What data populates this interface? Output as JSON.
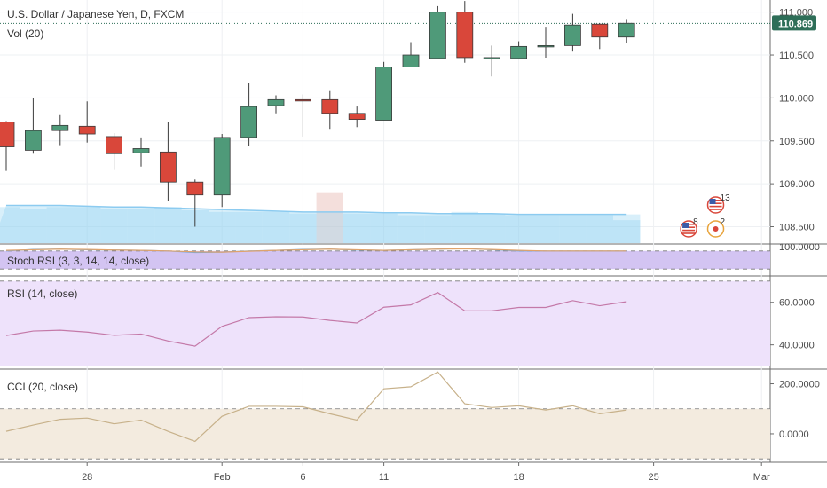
{
  "header": {
    "symbol_title": "U.S. Dollar / Japanese Yen, D, FXCM",
    "volume_label": "Vol (20)"
  },
  "indicators": {
    "stoch_rsi": "Stoch RSI (3, 3, 14, 14, close)",
    "rsi": "RSI (14, close)",
    "cci": "CCI (20, close)"
  },
  "last_price": "110.869",
  "colors": {
    "bull": "#4f9a79",
    "bear": "#d9473a",
    "volume": "#8fd0f2",
    "last_price_line": "#2e6e58",
    "stoch_band": "#d3c4f2",
    "rsi_band": "#eee2fb",
    "cci_band": "#f3ebdf"
  },
  "x_axis_labels": [
    {
      "label": "28",
      "index": 3
    },
    {
      "label": "Feb",
      "index": 8
    },
    {
      "label": "6",
      "index": 11
    },
    {
      "label": "11",
      "index": 14
    },
    {
      "label": "18",
      "index": 19
    },
    {
      "label": "25",
      "index": 24
    },
    {
      "label": "Mar",
      "index": 28
    }
  ],
  "event_markers": [
    {
      "count": "8",
      "index": 25.3
    },
    {
      "count": "13",
      "index": 26.3
    },
    {
      "count": "2",
      "index": 26.3
    }
  ],
  "chart_data": [
    {
      "type": "candlestick",
      "title": "U.S. Dollar / Japanese Yen, D, FXCM",
      "ylim": [
        108.35,
        111.1
      ],
      "yticks": [
        "108.500",
        "109.000",
        "109.500",
        "110.000",
        "110.500",
        "111.000"
      ],
      "last_price": 110.869,
      "candles": [
        {
          "o": 109.72,
          "h": 109.73,
          "l": 109.15,
          "c": 109.43
        },
        {
          "o": 109.39,
          "h": 110.0,
          "l": 109.35,
          "c": 109.62
        },
        {
          "o": 109.62,
          "h": 109.8,
          "l": 109.45,
          "c": 109.68
        },
        {
          "o": 109.67,
          "h": 109.96,
          "l": 109.48,
          "c": 109.58
        },
        {
          "o": 109.55,
          "h": 109.59,
          "l": 109.16,
          "c": 109.35
        },
        {
          "o": 109.36,
          "h": 109.54,
          "l": 109.2,
          "c": 109.41
        },
        {
          "o": 109.37,
          "h": 109.72,
          "l": 108.8,
          "c": 109.02
        },
        {
          "o": 109.02,
          "h": 109.05,
          "l": 108.5,
          "c": 108.87
        },
        {
          "o": 108.87,
          "h": 109.58,
          "l": 108.73,
          "c": 109.54
        },
        {
          "o": 109.54,
          "h": 110.17,
          "l": 109.44,
          "c": 109.9
        },
        {
          "o": 109.91,
          "h": 110.03,
          "l": 109.82,
          "c": 109.98
        },
        {
          "o": 109.98,
          "h": 110.04,
          "l": 109.55,
          "c": 109.97
        },
        {
          "o": 109.98,
          "h": 110.09,
          "l": 109.64,
          "c": 109.82
        },
        {
          "o": 109.82,
          "h": 109.9,
          "l": 109.66,
          "c": 109.75
        },
        {
          "o": 109.74,
          "h": 110.42,
          "l": 109.74,
          "c": 110.36
        },
        {
          "o": 110.36,
          "h": 110.65,
          "l": 110.36,
          "c": 110.5
        },
        {
          "o": 110.46,
          "h": 111.07,
          "l": 110.45,
          "c": 111.0
        },
        {
          "o": 111.0,
          "h": 111.13,
          "l": 110.41,
          "c": 110.47
        },
        {
          "o": 110.46,
          "h": 110.61,
          "l": 110.25,
          "c": 110.47
        },
        {
          "o": 110.46,
          "h": 110.66,
          "l": 110.46,
          "c": 110.6
        },
        {
          "o": 110.6,
          "h": 110.83,
          "l": 110.47,
          "c": 110.61
        },
        {
          "o": 110.61,
          "h": 110.98,
          "l": 110.54,
          "c": 110.85
        },
        {
          "o": 110.86,
          "h": 110.87,
          "l": 110.57,
          "c": 110.71
        },
        {
          "o": 110.71,
          "h": 110.92,
          "l": 110.64,
          "c": 110.87
        }
      ]
    },
    {
      "type": "bar",
      "name": "Vol (20)",
      "values": [
        2.2,
        2.1,
        2.2,
        2.2,
        2.1,
        2.1,
        2.2,
        2.0,
        1.9,
        1.9,
        1.9,
        1.8,
        3.1,
        1.8,
        1.8,
        1.7,
        1.7,
        1.9,
        1.8,
        1.7,
        1.7,
        1.7,
        1.7,
        1.4
      ],
      "ma": [
        2.3,
        2.3,
        2.3,
        2.25,
        2.2,
        2.2,
        2.15,
        2.1,
        2.05,
        2.0,
        1.95,
        1.9,
        1.9,
        1.9,
        1.85,
        1.85,
        1.8,
        1.8,
        1.8,
        1.75,
        1.75,
        1.75,
        1.75,
        1.75
      ],
      "ylim": [
        0,
        4
      ]
    },
    {
      "type": "line",
      "name": "Stoch RSI (3, 3, 14, 14, close)",
      "ytick": "100.0000",
      "values_k": [
        80,
        85,
        86,
        84,
        83,
        82,
        80,
        75,
        76,
        80,
        82,
        85,
        86,
        83,
        82,
        84,
        86,
        88,
        84,
        80,
        80,
        80,
        80,
        80
      ],
      "values_d": [
        82,
        84,
        86,
        85,
        83,
        82,
        80,
        77,
        76,
        79,
        82,
        84,
        86,
        84,
        82,
        84,
        86,
        87,
        85,
        82,
        80,
        80,
        80,
        80
      ],
      "bands": [
        80,
        20
      ],
      "ylim": [
        0,
        100
      ]
    },
    {
      "type": "line",
      "name": "RSI (14, close)",
      "yticks": [
        "40.0000",
        "60.0000"
      ],
      "values": [
        44.4,
        46.5,
        46.9,
        46.0,
        44.5,
        45.1,
        41.8,
        39.4,
        48.7,
        52.8,
        53.2,
        53.1,
        51.5,
        50.3,
        57.7,
        58.8,
        64.6,
        56.0,
        56.0,
        57.6,
        57.6,
        60.8,
        58.4,
        60.3
      ],
      "bands": [
        70,
        30
      ],
      "ylim": [
        29,
        72
      ]
    },
    {
      "type": "line",
      "name": "CCI (20, close)",
      "yticks": [
        "0.0000",
        "200.0000"
      ],
      "values": [
        10,
        35,
        58,
        63,
        40,
        55,
        10,
        -30,
        70,
        110,
        110,
        108,
        80,
        55,
        180,
        188,
        247,
        120,
        105,
        112,
        95,
        112,
        80,
        95
      ],
      "bands": [
        100,
        -100
      ],
      "ylim": [
        -110,
        255
      ]
    }
  ]
}
